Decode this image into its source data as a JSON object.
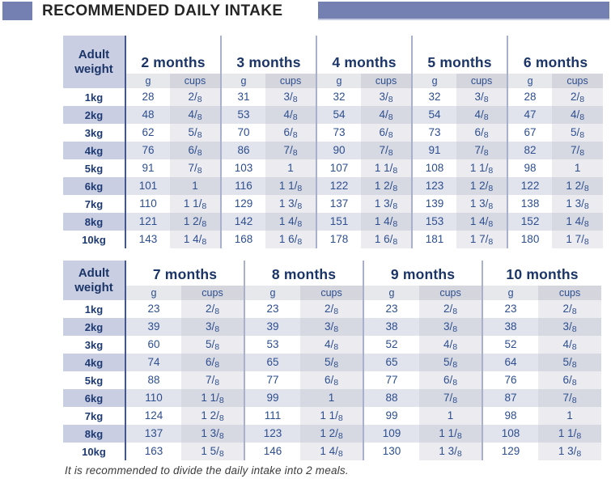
{
  "title": {
    "text": "RECOMMENDED DAILY INTAKE"
  },
  "footer": {
    "text": "It is recommended to divide the daily intake into 2 meals."
  },
  "colors": {
    "accent_purple": "#7480b2",
    "header_navy": "#1b3568",
    "data_blue": "#2d4e8f",
    "lavender_row": "#c9cee2"
  },
  "tables": [
    {
      "weight_header": "Adult weight",
      "unit_g": "g",
      "unit_cups": "cups",
      "months": [
        "2 months",
        "3 months",
        "4 months",
        "5 months",
        "6 months"
      ],
      "rows": [
        {
          "weight": "1kg",
          "values": [
            [
              "28",
              "2/8"
            ],
            [
              "31",
              "3/8"
            ],
            [
              "32",
              "3/8"
            ],
            [
              "32",
              "3/8"
            ],
            [
              "28",
              "2/8"
            ]
          ]
        },
        {
          "weight": "2kg",
          "values": [
            [
              "48",
              "4/8"
            ],
            [
              "53",
              "4/8"
            ],
            [
              "54",
              "4/8"
            ],
            [
              "54",
              "4/8"
            ],
            [
              "47",
              "4/8"
            ]
          ]
        },
        {
          "weight": "3kg",
          "values": [
            [
              "62",
              "5/8"
            ],
            [
              "70",
              "6/8"
            ],
            [
              "73",
              "6/8"
            ],
            [
              "73",
              "6/8"
            ],
            [
              "67",
              "5/8"
            ]
          ]
        },
        {
          "weight": "4kg",
          "values": [
            [
              "76",
              "6/8"
            ],
            [
              "86",
              "7/8"
            ],
            [
              "90",
              "7/8"
            ],
            [
              "91",
              "7/8"
            ],
            [
              "82",
              "7/8"
            ]
          ]
        },
        {
          "weight": "5kg",
          "values": [
            [
              "91",
              "7/8"
            ],
            [
              "103",
              "1"
            ],
            [
              "107",
              "1 1/8"
            ],
            [
              "108",
              "1 1/8"
            ],
            [
              "98",
              "1"
            ]
          ]
        },
        {
          "weight": "6kg",
          "values": [
            [
              "101",
              "1"
            ],
            [
              "116",
              "1 1/8"
            ],
            [
              "122",
              "1 2/8"
            ],
            [
              "123",
              "1 2/8"
            ],
            [
              "122",
              "1 2/8"
            ]
          ]
        },
        {
          "weight": "7kg",
          "values": [
            [
              "110",
              "1 1/8"
            ],
            [
              "129",
              "1 3/8"
            ],
            [
              "137",
              "1 3/8"
            ],
            [
              "139",
              "1 3/8"
            ],
            [
              "138",
              "1 3/8"
            ]
          ]
        },
        {
          "weight": "8kg",
          "values": [
            [
              "121",
              "1 2/8"
            ],
            [
              "142",
              "1 4/8"
            ],
            [
              "151",
              "1 4/8"
            ],
            [
              "153",
              "1 4/8"
            ],
            [
              "152",
              "1 4/8"
            ]
          ]
        },
        {
          "weight": "10kg",
          "values": [
            [
              "143",
              "1 4/8"
            ],
            [
              "168",
              "1 6/8"
            ],
            [
              "178",
              "1 6/8"
            ],
            [
              "181",
              "1 7/8"
            ],
            [
              "180",
              "1 7/8"
            ]
          ]
        }
      ]
    },
    {
      "weight_header": "Adult weight",
      "unit_g": "g",
      "unit_cups": "cups",
      "months": [
        "7 months",
        "8 months",
        "9 months",
        "10 months"
      ],
      "rows": [
        {
          "weight": "1kg",
          "values": [
            [
              "23",
              "2/8"
            ],
            [
              "23",
              "2/8"
            ],
            [
              "23",
              "2/8"
            ],
            [
              "23",
              "2/8"
            ]
          ]
        },
        {
          "weight": "2kg",
          "values": [
            [
              "39",
              "3/8"
            ],
            [
              "39",
              "3/8"
            ],
            [
              "38",
              "3/8"
            ],
            [
              "38",
              "3/8"
            ]
          ]
        },
        {
          "weight": "3kg",
          "values": [
            [
              "60",
              "5/8"
            ],
            [
              "53",
              "4/8"
            ],
            [
              "52",
              "4/8"
            ],
            [
              "52",
              "4/8"
            ]
          ]
        },
        {
          "weight": "4kg",
          "values": [
            [
              "74",
              "6/8"
            ],
            [
              "65",
              "5/8"
            ],
            [
              "65",
              "5/8"
            ],
            [
              "64",
              "5/8"
            ]
          ]
        },
        {
          "weight": "5kg",
          "values": [
            [
              "88",
              "7/8"
            ],
            [
              "77",
              "6/8"
            ],
            [
              "77",
              "6/8"
            ],
            [
              "76",
              "6/8"
            ]
          ]
        },
        {
          "weight": "6kg",
          "values": [
            [
              "110",
              "1 1/8"
            ],
            [
              "99",
              "1"
            ],
            [
              "88",
              "7/8"
            ],
            [
              "87",
              "7/8"
            ]
          ]
        },
        {
          "weight": "7kg",
          "values": [
            [
              "124",
              "1 2/8"
            ],
            [
              "111",
              "1 1/8"
            ],
            [
              "99",
              "1"
            ],
            [
              "98",
              "1"
            ]
          ]
        },
        {
          "weight": "8kg",
          "values": [
            [
              "137",
              "1 3/8"
            ],
            [
              "123",
              "1 2/8"
            ],
            [
              "109",
              "1 1/8"
            ],
            [
              "108",
              "1 1/8"
            ]
          ]
        },
        {
          "weight": "10kg",
          "values": [
            [
              "163",
              "1 5/8"
            ],
            [
              "146",
              "1 4/8"
            ],
            [
              "130",
              "1 3/8"
            ],
            [
              "129",
              "1 3/8"
            ]
          ]
        }
      ]
    }
  ]
}
